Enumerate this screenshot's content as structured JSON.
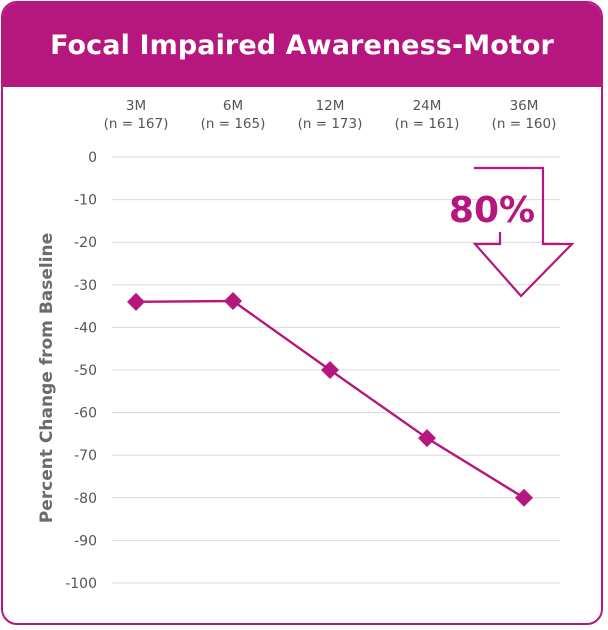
{
  "chart_data": {
    "type": "line",
    "title": "Focal Impaired Awareness-Motor",
    "ylabel": "Percent Change from Baseline",
    "xlabel": "",
    "categories": [
      {
        "period": "3M",
        "n": "(n = 167)"
      },
      {
        "period": "6M",
        "n": "(n = 165)"
      },
      {
        "period": "12M",
        "n": "(n = 173)"
      },
      {
        "period": "24M",
        "n": "(n = 161)"
      },
      {
        "period": "36M",
        "n": "(n = 160)"
      }
    ],
    "series": [
      {
        "values": [
          -34,
          -33.8,
          -50,
          -66,
          -80
        ]
      }
    ],
    "ylim": [
      -100,
      0
    ],
    "yticks": [
      0,
      -10,
      -20,
      -30,
      -40,
      -50,
      -60,
      -70,
      -80,
      -90,
      -100
    ],
    "grid": true,
    "annotation": {
      "text": "80%",
      "direction": "down-arrow"
    },
    "colors": {
      "accent": "#b5177f",
      "grid": "#d9d9d9",
      "text": "#555555"
    }
  }
}
